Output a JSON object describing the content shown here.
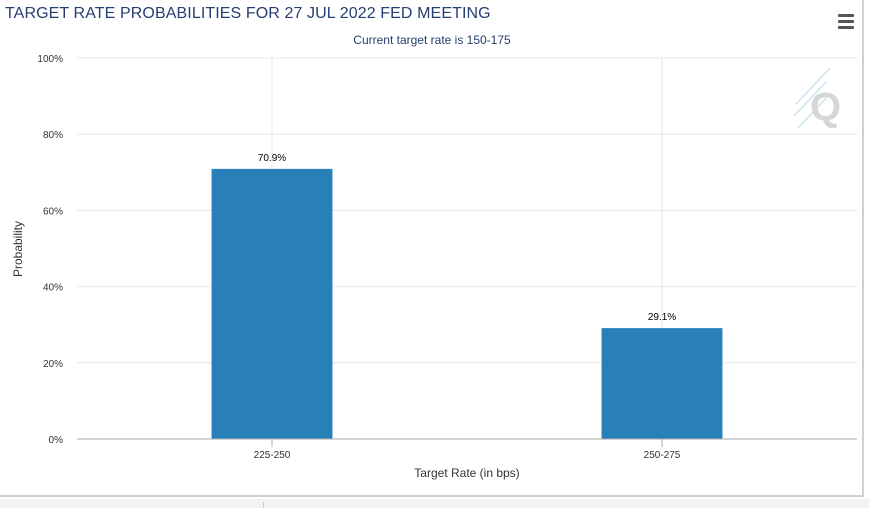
{
  "title": "TARGET RATE PROBABILITIES FOR 27 JUL 2022 FED MEETING",
  "subtitle": "Current target rate is 150-175",
  "menu_icon": "hamburger-menu-icon",
  "watermark": "Q",
  "colors": {
    "bar": "#2980b9",
    "title": "#253e6f",
    "grid": "#e6e6e6",
    "axis": "#aaaaaa"
  },
  "chart_data": {
    "type": "bar",
    "title": "TARGET RATE PROBABILITIES FOR 27 JUL 2022 FED MEETING",
    "subtitle": "Current target rate is 150-175",
    "xlabel": "Target Rate (in bps)",
    "ylabel": "Probability",
    "categories": [
      "225-250",
      "250-275"
    ],
    "values": [
      70.9,
      29.1
    ],
    "data_labels": [
      "70.9%",
      "29.1%"
    ],
    "ylim": [
      0,
      100
    ],
    "yticks": [
      0,
      20,
      40,
      60,
      80,
      100
    ],
    "ytick_labels": [
      "0%",
      "20%",
      "40%",
      "60%",
      "80%",
      "100%"
    ],
    "grid": true,
    "legend": "none"
  }
}
